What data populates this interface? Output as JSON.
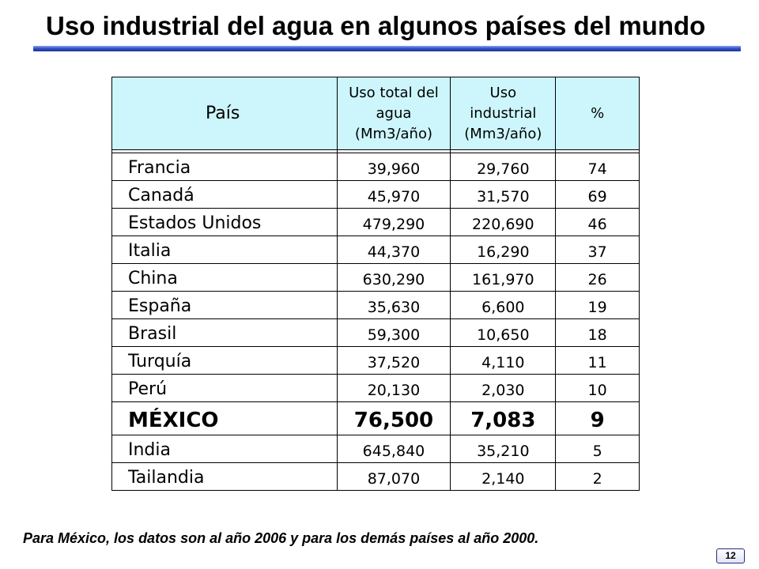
{
  "title": "Uso industrial del agua en algunos países del mundo",
  "table": {
    "headers": {
      "country": "País",
      "total": [
        "Uso total del",
        "agua",
        "(Mm3/año)"
      ],
      "industrial": [
        "Uso",
        "industrial",
        "(Mm3/año)"
      ],
      "percent": "%"
    },
    "rows": [
      {
        "country": "Francia",
        "total": "39,960",
        "industrial": "29,760",
        "percent": "74"
      },
      {
        "country": "Canadá",
        "total": "45,970",
        "industrial": "31,570",
        "percent": "69"
      },
      {
        "country": "Estados Unidos",
        "total": "479,290",
        "industrial": "220,690",
        "percent": "46"
      },
      {
        "country": "Italia",
        "total": "44,370",
        "industrial": "16,290",
        "percent": "37"
      },
      {
        "country": "China",
        "total": "630,290",
        "industrial": "161,970",
        "percent": "26"
      },
      {
        "country": "España",
        "total": "35,630",
        "industrial": "6,600",
        "percent": "19"
      },
      {
        "country": "Brasil",
        "total": "59,300",
        "industrial": "10,650",
        "percent": "18"
      },
      {
        "country": "Turquía",
        "total": "37,520",
        "industrial": "4,110",
        "percent": "11"
      },
      {
        "country": "Perú",
        "total": "20,130",
        "industrial": "2,030",
        "percent": "10"
      },
      {
        "country": "MÉXICO",
        "total": "76,500",
        "industrial": "7,083",
        "percent": "9"
      },
      {
        "country": "India",
        "total": "645,840",
        "industrial": "35,210",
        "percent": "5"
      },
      {
        "country": "Tailandia",
        "total": "87,070",
        "industrial": "2,140",
        "percent": "2"
      }
    ]
  },
  "note": "Para México, los datos son al año 2006 y para los demás países al año 2000.",
  "page_number": "12",
  "colors": {
    "header_bg": "#ccf6fc",
    "rule_blue": "#3355cc"
  }
}
